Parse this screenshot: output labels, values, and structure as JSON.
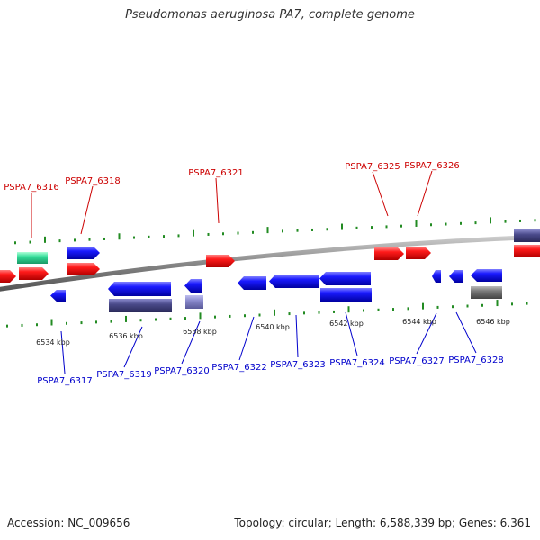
{
  "title": "Pseudomonas aeruginosa PA7, complete genome",
  "footer": {
    "accession": "Accession: NC_009656",
    "summary": "Topology: circular; Length: 6,588,339 bp; Genes: 6,361"
  },
  "colors": {
    "forward_gene": "#e60000",
    "reverse_gene": "#1a1ae6",
    "backbone": "#888888",
    "tick": "#228b22",
    "label_forward": "#cc0000",
    "label_reverse": "#0000cc",
    "teal_feature": "#33dd99",
    "slate_feature": "#4a4a8a",
    "lavender_feature": "#8a8acc",
    "gray_feature": "#777777"
  },
  "ruler_labels": [
    "6534 kbp",
    "6536 kbp",
    "6538 kbp",
    "6540 kbp",
    "6542 kbp",
    "6544 kbp",
    "6546 kbp"
  ],
  "gene_labels": {
    "forward": [
      "PSPA7_6316",
      "PSPA7_6318",
      "PSPA7_6321",
      "PSPA7_6325",
      "PSPA7_6326"
    ],
    "reverse": [
      "PSPA7_6317",
      "PSPA7_6319",
      "PSPA7_6320",
      "PSPA7_6322",
      "PSPA7_6323",
      "PSPA7_6324",
      "PSPA7_6327",
      "PSPA7_6328"
    ]
  }
}
